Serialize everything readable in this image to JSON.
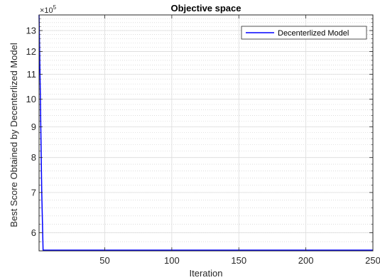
{
  "chart_data": {
    "type": "line",
    "title": "Objective space",
    "xlabel": "Iteration",
    "ylabel": "Best Score Obtained by Decenterlized Model",
    "y_exponent_label": "×10",
    "y_exponent_power": "5",
    "y_scale": "log",
    "xlim": [
      1,
      250
    ],
    "ylim": [
      560000,
      1380000
    ],
    "x_ticks": [
      50,
      100,
      150,
      200,
      250
    ],
    "y_ticks": [
      6,
      7,
      8,
      9,
      10,
      11,
      12,
      13
    ],
    "y_tick_multiplier": 100000,
    "grid": true,
    "minor_grid": true,
    "legend_position": "top-right",
    "series": [
      {
        "name": "Decenterlized Model",
        "color": "#0000ff",
        "x": [
          1,
          2,
          3,
          4,
          5,
          250
        ],
        "y": [
          1380000,
          1000000,
          700000,
          560000,
          560000,
          560000
        ]
      }
    ]
  }
}
